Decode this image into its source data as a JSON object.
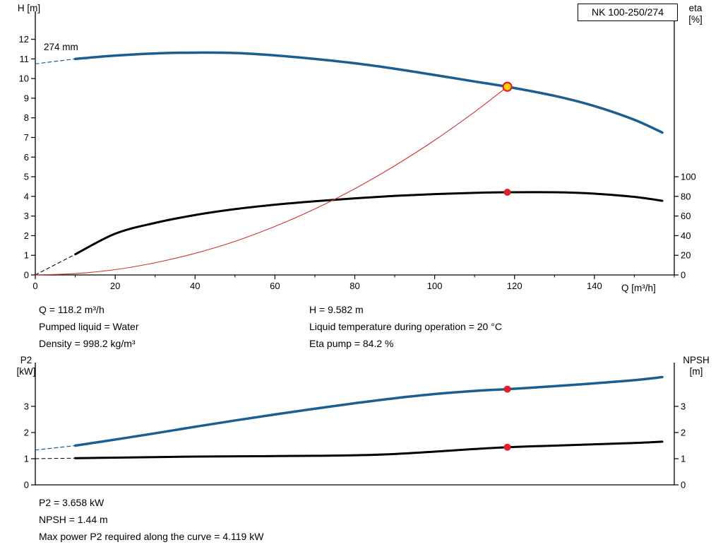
{
  "title_box": {
    "label": "NK 100-250/274"
  },
  "annotations": {
    "impeller": "274 mm",
    "duty_left": [
      "Q = 118.2 m³/h",
      "Pumped liquid = Water",
      "Density = 998.2 kg/m³"
    ],
    "duty_right": [
      "H = 9.582 m",
      "Liquid temperature during operation = 20 °C",
      "Eta pump = 84.2 %"
    ],
    "power": [
      "P2 = 3.658 kW",
      "NPSH = 1.44 m",
      "Max power P2 required along the curve = 4.119 kW"
    ]
  },
  "colors": {
    "curve_blue": "#1b5e91",
    "curve_black": "#000000",
    "system_red": "#cc3333",
    "marker_red": "#e31e24",
    "marker_yellow": "#ffd500"
  },
  "chart_data": [
    {
      "type": "line",
      "title": "Head and efficiency vs flow",
      "x_axis": {
        "label": "Q [m³/h]",
        "min": 0,
        "max": 160,
        "major_ticks": [
          0,
          20,
          40,
          60,
          80,
          100,
          120,
          140
        ],
        "minor_step": 10
      },
      "y_left": {
        "label": "H [m]",
        "min": 0,
        "max": 12.2,
        "ticks": [
          0,
          1,
          2,
          3,
          4,
          5,
          6,
          7,
          8,
          9,
          10,
          11,
          12
        ]
      },
      "y_right": {
        "label": "eta [%]",
        "min": 0,
        "max": 100,
        "ticks": [
          0,
          20,
          40,
          60,
          80,
          100
        ],
        "ratio": 0.05
      },
      "grid": false,
      "legend": "none",
      "series": [
        {
          "name": "head-curve-lead",
          "axis": "left",
          "color": "#1b5e91",
          "width": 1.2,
          "dash": true,
          "points": [
            [
              0,
              10.75
            ],
            [
              10,
              11.0
            ]
          ]
        },
        {
          "name": "head-curve-274mm",
          "axis": "left",
          "color": "#1b5e91",
          "width": 3.5,
          "dash": false,
          "points": [
            [
              10,
              11.0
            ],
            [
              20,
              11.17
            ],
            [
              30,
              11.28
            ],
            [
              40,
              11.32
            ],
            [
              50,
              11.3
            ],
            [
              60,
              11.18
            ],
            [
              70,
              11.0
            ],
            [
              80,
              10.78
            ],
            [
              90,
              10.5
            ],
            [
              100,
              10.18
            ],
            [
              110,
              9.85
            ],
            [
              118.2,
              9.582
            ],
            [
              130,
              9.12
            ],
            [
              140,
              8.6
            ],
            [
              150,
              7.9
            ],
            [
              157,
              7.25
            ]
          ]
        },
        {
          "name": "eta-curve-lead",
          "axis": "left",
          "color": "#000000",
          "width": 1.0,
          "dash": true,
          "points": [
            [
              0,
              0
            ],
            [
              10,
              1.05
            ]
          ]
        },
        {
          "name": "eta-curve",
          "axis": "right",
          "color": "#000000",
          "width": 3.0,
          "dash": false,
          "points": [
            [
              10,
              21
            ],
            [
              20,
              42
            ],
            [
              30,
              53
            ],
            [
              40,
              61
            ],
            [
              50,
              67
            ],
            [
              60,
              71.5
            ],
            [
              70,
              75
            ],
            [
              80,
              78
            ],
            [
              90,
              80.5
            ],
            [
              100,
              82.3
            ],
            [
              110,
              83.6
            ],
            [
              118.2,
              84.2
            ],
            [
              130,
              84.2
            ],
            [
              140,
              82.8
            ],
            [
              150,
              79.5
            ],
            [
              157,
              75.5
            ]
          ]
        },
        {
          "name": "system-curve",
          "axis": "left",
          "color": "#cc3333",
          "width": 1.1,
          "dash": false,
          "points": [
            [
              0,
              0
            ],
            [
              10,
              0.07
            ],
            [
              20,
              0.27
            ],
            [
              30,
              0.62
            ],
            [
              40,
              1.1
            ],
            [
              50,
              1.71
            ],
            [
              60,
              2.47
            ],
            [
              70,
              3.36
            ],
            [
              80,
              4.39
            ],
            [
              90,
              5.56
            ],
            [
              100,
              6.86
            ],
            [
              110,
              8.3
            ],
            [
              118.2,
              9.582
            ]
          ]
        }
      ],
      "markers": [
        {
          "name": "duty-point",
          "x": 118.2,
          "y": 9.582,
          "axis": "left",
          "fill": "#ffd500",
          "stroke": "#e31e24",
          "r": 6
        },
        {
          "name": "eta-duty-point",
          "x": 118.2,
          "y": 84.2,
          "axis": "right",
          "fill": "#e31e24",
          "stroke": "",
          "r": 5
        }
      ]
    },
    {
      "type": "line",
      "title": "Power and NPSH vs flow",
      "x_axis": {
        "label": "",
        "min": 0,
        "max": 160,
        "major_ticks": [],
        "minor_step": 0
      },
      "y_left": {
        "label": "P2 [kW]",
        "min": 0,
        "max": 4.7,
        "ticks": [
          0,
          1,
          2,
          3
        ]
      },
      "y_right": {
        "label": "NPSH [m]",
        "min": 0,
        "max": 4.7,
        "ticks": [
          0,
          1,
          2,
          3
        ],
        "ratio": 1
      },
      "grid": false,
      "legend": "none",
      "series": [
        {
          "name": "p2-curve-lead",
          "axis": "left",
          "color": "#1b5e91",
          "width": 1.2,
          "dash": true,
          "points": [
            [
              0,
              1.33
            ],
            [
              10,
              1.5
            ]
          ]
        },
        {
          "name": "p2-curve",
          "axis": "left",
          "color": "#1b5e91",
          "width": 3.5,
          "dash": false,
          "points": [
            [
              10,
              1.5
            ],
            [
              20,
              1.73
            ],
            [
              30,
              1.97
            ],
            [
              40,
              2.22
            ],
            [
              50,
              2.46
            ],
            [
              60,
              2.69
            ],
            [
              70,
              2.91
            ],
            [
              80,
              3.12
            ],
            [
              90,
              3.31
            ],
            [
              100,
              3.47
            ],
            [
              110,
              3.59
            ],
            [
              118.2,
              3.658
            ],
            [
              130,
              3.77
            ],
            [
              140,
              3.88
            ],
            [
              150,
              4.0
            ],
            [
              157,
              4.119
            ]
          ]
        },
        {
          "name": "npsh-curve-lead",
          "axis": "left",
          "color": "#000000",
          "width": 1.0,
          "dash": true,
          "points": [
            [
              0,
              1.0
            ],
            [
              10,
              1.02
            ]
          ]
        },
        {
          "name": "npsh-curve",
          "axis": "left",
          "color": "#000000",
          "width": 3.0,
          "dash": false,
          "points": [
            [
              10,
              1.02
            ],
            [
              20,
              1.04
            ],
            [
              30,
              1.06
            ],
            [
              40,
              1.08
            ],
            [
              50,
              1.09
            ],
            [
              60,
              1.1
            ],
            [
              70,
              1.11
            ],
            [
              80,
              1.13
            ],
            [
              90,
              1.18
            ],
            [
              100,
              1.27
            ],
            [
              110,
              1.37
            ],
            [
              118.2,
              1.44
            ],
            [
              130,
              1.5
            ],
            [
              140,
              1.55
            ],
            [
              150,
              1.6
            ],
            [
              157,
              1.65
            ]
          ]
        }
      ],
      "markers": [
        {
          "name": "p2-duty-point",
          "x": 118.2,
          "y": 3.658,
          "axis": "left",
          "fill": "#e31e24",
          "stroke": "",
          "r": 5
        },
        {
          "name": "npsh-duty-point",
          "x": 118.2,
          "y": 1.44,
          "axis": "left",
          "fill": "#e31e24",
          "stroke": "",
          "r": 5
        }
      ]
    }
  ]
}
